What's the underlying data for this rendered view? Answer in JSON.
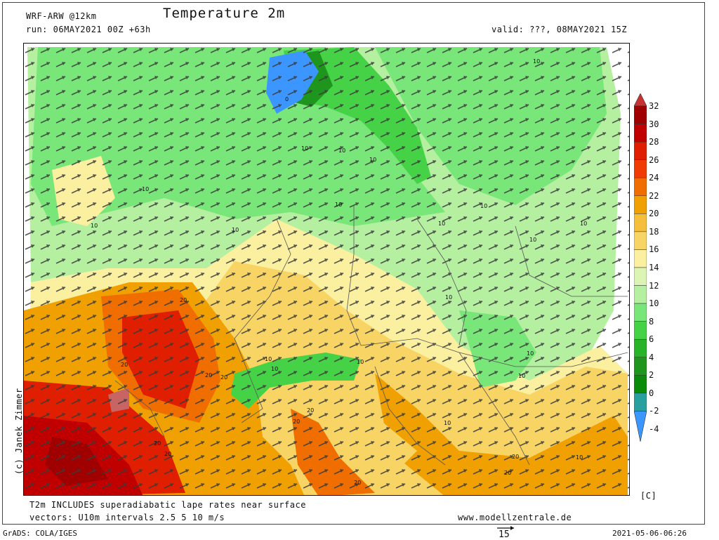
{
  "header": {
    "model": "WRF-ARW @12km",
    "run": "run: 06MAY2021 00Z +63h",
    "title": "Temperature 2m",
    "valid": "valid: ???, 08MAY2021 15Z"
  },
  "footer": {
    "note1": "T2m INCLUDES superadiabatic lape rates near surface",
    "note2": "vectors: U10m intervals 2.5 5 10 m/s",
    "website": "www.modellzentrale.de",
    "grads": "GrADS: COLA/IGES",
    "vector_scale": "15",
    "timestamp": "2021-05-06-06:26"
  },
  "credit": "(c) Janek Zimmer",
  "legend": {
    "unit": "[C]",
    "labels": [
      "32",
      "30",
      "28",
      "26",
      "24",
      "22",
      "20",
      "18",
      "16",
      "14",
      "12",
      "10",
      "8",
      "6",
      "4",
      "2",
      "0",
      "-2",
      "-4"
    ],
    "colors": [
      "#c83232",
      "#a00000",
      "#c00000",
      "#e01e00",
      "#f03c00",
      "#f06e00",
      "#f0a000",
      "#f5bf3c",
      "#f7d464",
      "#faf0a0",
      "#dcf5b4",
      "#b4f0a0",
      "#78e678",
      "#46d246",
      "#28b428",
      "#1e961e",
      "#0a8c0a",
      "#28a0a0",
      "#3c96ff"
    ]
  },
  "map": {
    "contour_labels": [
      "10",
      "10",
      "10",
      "10",
      "10",
      "10",
      "10",
      "10",
      "10",
      "10",
      "10",
      "10",
      "10",
      "10",
      "10",
      "10",
      "10",
      "10",
      "10",
      "10",
      "0",
      "20",
      "20",
      "20",
      "20",
      "20",
      "20",
      "20",
      "20",
      "20",
      "20",
      "20"
    ]
  }
}
